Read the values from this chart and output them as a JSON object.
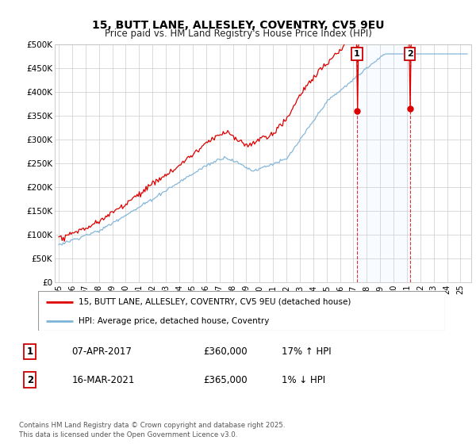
{
  "title": "15, BUTT LANE, ALLESLEY, COVENTRY, CV5 9EU",
  "subtitle": "Price paid vs. HM Land Registry's House Price Index (HPI)",
  "ylim": [
    0,
    500000
  ],
  "yticks": [
    0,
    50000,
    100000,
    150000,
    200000,
    250000,
    300000,
    350000,
    400000,
    450000,
    500000
  ],
  "ytick_labels": [
    "£0",
    "£50K",
    "£100K",
    "£150K",
    "£200K",
    "£250K",
    "£300K",
    "£350K",
    "£400K",
    "£450K",
    "£500K"
  ],
  "line1_color": "#dd0000",
  "line2_color": "#7fb4d8",
  "span_color": "#ddeeff",
  "annotation_box_color": "#cc0000",
  "vline_color": "#dd0000",
  "background_color": "#ffffff",
  "grid_color": "#cccccc",
  "legend_label1": "15, BUTT LANE, ALLESLEY, COVENTRY, CV5 9EU (detached house)",
  "legend_label2": "HPI: Average price, detached house, Coventry",
  "transaction1_label": "1",
  "transaction1_date": "07-APR-2017",
  "transaction1_price": "£360,000",
  "transaction1_hpi": "17% ↑ HPI",
  "transaction1_year": 2017.27,
  "transaction1_value": 360000,
  "transaction2_label": "2",
  "transaction2_date": "16-MAR-2021",
  "transaction2_price": "£365,000",
  "transaction2_hpi": "1% ↓ HPI",
  "transaction2_year": 2021.21,
  "transaction2_value": 365000,
  "copyright": "Contains HM Land Registry data © Crown copyright and database right 2025.\nThis data is licensed under the Open Government Licence v3.0."
}
